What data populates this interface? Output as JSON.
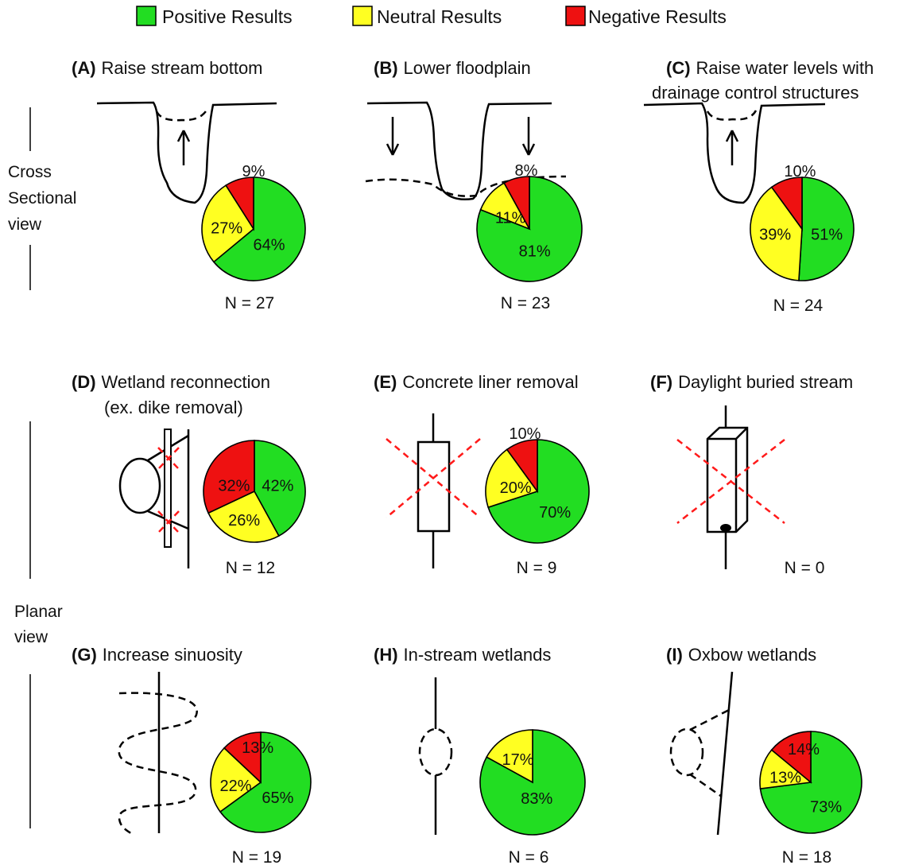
{
  "legend": [
    {
      "label": "Positive Results",
      "color": "#22dd22"
    },
    {
      "label": "Neutral Results",
      "color": "#ffff22"
    },
    {
      "label": "Negative Results",
      "color": "#ee1111"
    }
  ],
  "side_labels": {
    "cross_line1": "Cross",
    "cross_line2": "Sectional",
    "cross_line3": "view",
    "planar_line1": "Planar",
    "planar_line2": "view"
  },
  "chart_data": [
    {
      "type": "pie",
      "id": "A",
      "letter": "(A)",
      "title": "Raise stream bottom",
      "title2": "",
      "n_label": "N = 27",
      "slices": [
        {
          "name": "Positive Results",
          "value": 64,
          "label": "64%"
        },
        {
          "name": "Neutral Results",
          "value": 27,
          "label": "27%"
        },
        {
          "name": "Negative Results",
          "value": 9,
          "label": "9%"
        }
      ]
    },
    {
      "type": "pie",
      "id": "B",
      "letter": "(B)",
      "title": "Lower floodplain",
      "title2": "",
      "n_label": "N = 23",
      "slices": [
        {
          "name": "Positive Results",
          "value": 81,
          "label": "81%"
        },
        {
          "name": "Neutral Results",
          "value": 11,
          "label": "11%"
        },
        {
          "name": "Negative Results",
          "value": 8,
          "label": "8%"
        }
      ]
    },
    {
      "type": "pie",
      "id": "C",
      "letter": "(C)",
      "title": "Raise water levels with",
      "title2": "drainage control structures",
      "n_label": "N = 24",
      "slices": [
        {
          "name": "Positive Results",
          "value": 51,
          "label": "51%"
        },
        {
          "name": "Neutral Results",
          "value": 39,
          "label": "39%"
        },
        {
          "name": "Negative Results",
          "value": 10,
          "label": "10%"
        }
      ]
    },
    {
      "type": "pie",
      "id": "D",
      "letter": "(D)",
      "title": "Wetland reconnection",
      "title2": "(ex. dike removal)",
      "n_label": "N = 12",
      "slices": [
        {
          "name": "Positive Results",
          "value": 42,
          "label": "42%"
        },
        {
          "name": "Neutral Results",
          "value": 26,
          "label": "26%"
        },
        {
          "name": "Negative Results",
          "value": 32,
          "label": "32%"
        }
      ]
    },
    {
      "type": "pie",
      "id": "E",
      "letter": "(E)",
      "title": "Concrete liner removal",
      "title2": "",
      "n_label": "N = 9",
      "slices": [
        {
          "name": "Positive Results",
          "value": 70,
          "label": "70%"
        },
        {
          "name": "Neutral Results",
          "value": 20,
          "label": "20%"
        },
        {
          "name": "Negative Results",
          "value": 10,
          "label": "10%"
        }
      ]
    },
    {
      "type": "pie",
      "id": "F",
      "letter": "(F)",
      "title": "Daylight buried stream",
      "title2": "",
      "n_label": "N = 0",
      "slices": []
    },
    {
      "type": "pie",
      "id": "G",
      "letter": "(G)",
      "title": "Increase sinuosity",
      "title2": "",
      "n_label": "N = 19",
      "slices": [
        {
          "name": "Positive Results",
          "value": 65,
          "label": "65%"
        },
        {
          "name": "Neutral Results",
          "value": 22,
          "label": "22%"
        },
        {
          "name": "Negative Results",
          "value": 13,
          "label": "13%"
        }
      ]
    },
    {
      "type": "pie",
      "id": "H",
      "letter": "(H)",
      "title": "In-stream wetlands",
      "title2": "",
      "n_label": "N = 6",
      "slices": [
        {
          "name": "Positive Results",
          "value": 83,
          "label": "83%"
        },
        {
          "name": "Neutral Results",
          "value": 17,
          "label": "17%"
        }
      ]
    },
    {
      "type": "pie",
      "id": "I",
      "letter": "(I)",
      "title": "Oxbow wetlands",
      "title2": "",
      "n_label": "N = 18",
      "slices": [
        {
          "name": "Positive Results",
          "value": 73,
          "label": "73%"
        },
        {
          "name": "Neutral Results",
          "value": 13,
          "label": "13%"
        },
        {
          "name": "Negative Results",
          "value": 14,
          "label": "14%"
        }
      ]
    }
  ]
}
